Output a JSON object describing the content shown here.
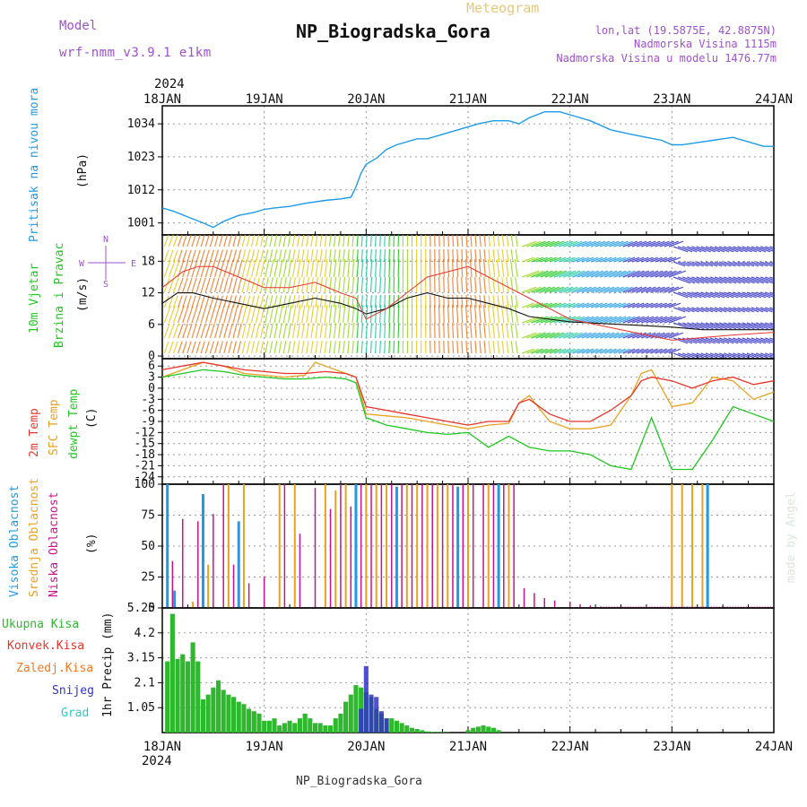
{
  "header": {
    "model_label": "Model",
    "model_value": "wrf-nmm_v3.9.1 e1km",
    "meteogram_label": "Meteogram",
    "station_title": "NP_Biogradska_Gora",
    "coords": "lon,lat (19.5875E, 42.8875N)",
    "altitude": "Nadmorska Visina 1115m",
    "model_altitude": "Nadmorska Visina u modelu 1476.77m",
    "year": "2024",
    "footer_station": "NP_Biogradska_Gora",
    "watermark": "made by Angel"
  },
  "colors": {
    "pressure": "#1e9be8",
    "temp2m": "#e8352b",
    "sfc_temp": "#e8a21e",
    "dewpt": "#1ec81e",
    "high_cloud": "#1e9be8",
    "mid_cloud": "#e8a21e",
    "low_cloud": "#c8148c",
    "precip_total": "#2db82d",
    "precip_conv": "#e8352b",
    "precip_frz": "#f07820",
    "precip_snow": "#3232c8",
    "precip_graupel": "#32c8c8",
    "header_purple": "#a050d0",
    "meteogram_gold": "#e8c878"
  },
  "x_axis": {
    "labels": [
      "18JAN",
      "19JAN",
      "20JAN",
      "21JAN",
      "22JAN",
      "23JAN",
      "24JAN"
    ]
  },
  "panels": {
    "pressure": {
      "ylabels": [
        "Pritisak na nivou mora",
        "(hPa)"
      ]
    },
    "wind": {
      "ylabels": [
        "10m Vjetar",
        "Brzina i Pravac",
        "(m/s)"
      ],
      "compass": {
        "n": "N",
        "s": "S",
        "e": "E",
        "w": "W"
      }
    },
    "temp": {
      "ylabels": [
        "2m Temp",
        "SFC Temp",
        "dewpt Temp",
        "(C)"
      ]
    },
    "cloud": {
      "ylabels": [
        "Visoka Oblacnost",
        "Srednja Oblacnost",
        "Niska Oblacnost",
        "(%)"
      ]
    },
    "precip": {
      "ylabels": [
        "1hr Precip (mm)"
      ],
      "legend": [
        "Ukupna Kisa",
        "Konvek.Kisa",
        "Zaledj.Kisa",
        "Snijeg",
        "Grad"
      ]
    }
  },
  "chart_data": [
    {
      "type": "line",
      "title": "",
      "ylabel": "Pritisak na nivou mora (hPa)",
      "x_unit": "days from 18JAN 2024 00UTC",
      "yticks": [
        1001,
        1012,
        1023,
        1034
      ],
      "ylim": [
        997,
        1040
      ],
      "series": [
        {
          "name": "",
          "x": [
            0,
            0.1,
            0.25,
            0.4,
            0.5,
            0.6,
            0.75,
            0.9,
            1.0,
            1.1,
            1.25,
            1.4,
            1.6,
            1.75,
            1.85,
            1.9,
            1.95,
            2.0,
            2.1,
            2.2,
            2.3,
            2.5,
            2.6,
            2.75,
            2.9,
            3.1,
            3.25,
            3.4,
            3.5,
            3.6,
            3.75,
            3.9,
            4.0,
            4.2,
            4.4,
            4.6,
            4.75,
            4.9,
            5.0,
            5.1,
            5.3,
            5.4,
            5.5,
            5.6,
            5.75,
            5.9,
            6.0
          ],
          "y": [
            1006,
            1005,
            1003,
            1001,
            999.5,
            1001.5,
            1003.5,
            1004.5,
            1005.5,
            1006,
            1006.5,
            1007.5,
            1008.5,
            1009,
            1009.5,
            1013,
            1017.5,
            1020.5,
            1022.5,
            1025.5,
            1027,
            1029,
            1029,
            1030.5,
            1032,
            1034,
            1035,
            1035,
            1034,
            1036,
            1038,
            1038,
            1037,
            1035,
            1032,
            1030.5,
            1029.5,
            1028.5,
            1027,
            1027,
            1028,
            1028.5,
            1029,
            1029.5,
            1028,
            1026.5,
            1026.5
          ]
        }
      ]
    },
    {
      "type": "line",
      "title": "",
      "ylabel": "10m Vjetar Brzina i Pravac (m/s)",
      "yticks": [
        0,
        6,
        12,
        18
      ],
      "ylim": [
        -0.5,
        23
      ],
      "series": [
        {
          "name": "",
          "x": [
            0,
            0.15,
            0.3,
            0.5,
            0.75,
            1.0,
            1.25,
            1.5,
            1.75,
            1.9,
            2.0,
            2.2,
            2.4,
            2.6,
            2.8,
            3.0,
            3.2,
            3.4,
            3.6,
            3.8,
            4.0,
            4.5,
            5.0,
            5.3,
            5.6,
            6.0
          ],
          "y": [
            10,
            12,
            12,
            11,
            10,
            9,
            10,
            11,
            10,
            9,
            8,
            9,
            11,
            12,
            11,
            11,
            10,
            9,
            7.5,
            7,
            6.5,
            6,
            5.5,
            5,
            5,
            5
          ]
        },
        {
          "name": "",
          "x": [
            0,
            0.2,
            0.35,
            0.5,
            0.75,
            1.0,
            1.25,
            1.5,
            1.75,
            1.9,
            2.0,
            2.2,
            2.4,
            2.6,
            2.8,
            3.0,
            3.2,
            3.4,
            3.6,
            3.8,
            4.0,
            4.5,
            5.0,
            5.3,
            5.6,
            6.0
          ],
          "y": [
            13,
            16,
            17,
            17,
            15,
            13,
            13,
            14,
            12,
            11,
            7,
            9,
            12,
            15,
            16,
            17,
            15,
            13,
            11,
            9,
            7,
            5,
            3,
            3.5,
            4,
            4.5
          ]
        }
      ]
    },
    {
      "type": "line",
      "title": "",
      "ylabel": "Temp (C)",
      "yticks": [
        -24,
        -21,
        -18,
        -15,
        -12,
        -9,
        -6,
        -3,
        0,
        3,
        6
      ],
      "ylim": [
        -26,
        8
      ],
      "series": [
        {
          "name": "2m Temp",
          "x": [
            0,
            0.2,
            0.4,
            0.6,
            0.8,
            1.0,
            1.2,
            1.4,
            1.6,
            1.8,
            1.9,
            2.0,
            2.2,
            2.4,
            2.6,
            2.8,
            3.0,
            3.2,
            3.4,
            3.5,
            3.6,
            3.8,
            4.0,
            4.2,
            4.4,
            4.6,
            4.7,
            4.8,
            5.0,
            5.2,
            5.4,
            5.6,
            5.8,
            6.0
          ],
          "y": [
            5,
            6,
            7,
            6,
            5,
            4.5,
            4,
            4,
            4.5,
            4,
            3,
            -5,
            -6,
            -7,
            -8,
            -9,
            -10,
            -9,
            -9,
            -4,
            -3,
            -7,
            -9,
            -9,
            -6,
            -2,
            2,
            3,
            2,
            0,
            2,
            3,
            1,
            2
          ]
        },
        {
          "name": "SFC Temp",
          "x": [
            0,
            0.2,
            0.4,
            0.6,
            0.8,
            1.0,
            1.2,
            1.4,
            1.5,
            1.6,
            1.8,
            1.9,
            2.0,
            2.2,
            2.4,
            2.6,
            2.8,
            3.0,
            3.2,
            3.4,
            3.5,
            3.6,
            3.8,
            4.0,
            4.2,
            4.4,
            4.6,
            4.7,
            4.8,
            5.0,
            5.2,
            5.4,
            5.6,
            5.8,
            6.0
          ],
          "y": [
            3,
            5,
            7,
            6,
            4,
            3.5,
            3,
            3.5,
            7,
            6,
            4,
            3,
            -7,
            -7.5,
            -8,
            -9,
            -10,
            -11,
            -10,
            -9.5,
            -4,
            -2,
            -9,
            -11,
            -11,
            -10,
            -2,
            4,
            5,
            -5,
            -4,
            3,
            2,
            -3,
            -1
          ]
        },
        {
          "name": "dewpt Temp",
          "x": [
            0,
            0.2,
            0.4,
            0.6,
            0.8,
            1.0,
            1.2,
            1.4,
            1.6,
            1.8,
            1.9,
            2.0,
            2.2,
            2.4,
            2.6,
            2.8,
            3.0,
            3.1,
            3.2,
            3.4,
            3.6,
            3.8,
            4.0,
            4.2,
            4.4,
            4.6,
            4.7,
            4.8,
            5.0,
            5.2,
            5.4,
            5.6,
            5.8,
            6.0
          ],
          "y": [
            3,
            4,
            5,
            4.5,
            3.5,
            3,
            2.5,
            2.5,
            3,
            2.5,
            1.5,
            -8,
            -10,
            -11,
            -12,
            -12.5,
            -12,
            -14,
            -16,
            -13,
            -16,
            -17,
            -17,
            -18,
            -21,
            -22,
            -15,
            -8,
            -22,
            -22,
            -14,
            -5,
            -7,
            -9
          ]
        }
      ]
    },
    {
      "type": "bar",
      "title": "",
      "ylabel": "Oblacnost (%)",
      "yticks": [
        0,
        25,
        50,
        75,
        100
      ],
      "ylim": [
        0,
        100
      ],
      "series": [
        {
          "name": "Visoka Oblacnost",
          "x": [
            0.05,
            0.12,
            0.4,
            0.75,
            1.9,
            2.3,
            2.9,
            3.3,
            5.35
          ],
          "y": [
            100,
            14,
            92,
            70,
            100,
            98,
            98,
            100,
            100
          ]
        },
        {
          "name": "Srednja Oblacnost",
          "x": [
            0.3,
            0.45,
            0.65,
            0.8,
            1.15,
            1.3,
            1.6,
            1.7,
            1.8,
            2.0,
            2.1,
            2.2,
            2.4,
            2.5,
            2.6,
            2.7,
            2.8,
            3.0,
            3.2,
            3.4,
            5.0,
            5.1,
            5.2,
            5.3
          ],
          "y": [
            5,
            35,
            100,
            100,
            100,
            100,
            100,
            95,
            100,
            100,
            100,
            100,
            100,
            100,
            100,
            100,
            100,
            100,
            100,
            100,
            100,
            100,
            100,
            100
          ]
        },
        {
          "name": "Niska Oblacnost",
          "x": [
            0.1,
            0.2,
            0.35,
            0.5,
            0.6,
            0.7,
            0.85,
            1.0,
            1.2,
            1.35,
            1.5,
            1.65,
            1.75,
            1.85,
            1.95,
            2.05,
            2.15,
            2.25,
            2.35,
            2.45,
            2.55,
            2.65,
            2.75,
            2.85,
            2.95,
            3.05,
            3.15,
            3.25,
            3.35,
            3.45,
            3.55,
            3.65,
            3.75,
            3.85,
            4.0,
            4.1,
            4.2,
            4.3
          ],
          "y": [
            38,
            72,
            70,
            76,
            100,
            35,
            20,
            25,
            100,
            60,
            97,
            80,
            100,
            82,
            100,
            100,
            100,
            100,
            100,
            100,
            100,
            100,
            100,
            100,
            100,
            100,
            100,
            100,
            100,
            100,
            16,
            12,
            8,
            6,
            5,
            3,
            2,
            1
          ]
        }
      ]
    },
    {
      "type": "bar",
      "title": "",
      "ylabel": "1hr Precip (mm)",
      "yticks": [
        1.05,
        2.1,
        3.15,
        4.2,
        5.25
      ],
      "ylim": [
        0,
        5.25
      ],
      "series": [
        {
          "name": "Ukupna Kisa",
          "x": [
            0.05,
            0.1,
            0.15,
            0.2,
            0.25,
            0.3,
            0.35,
            0.4,
            0.45,
            0.5,
            0.55,
            0.6,
            0.65,
            0.7,
            0.75,
            0.8,
            0.85,
            0.9,
            0.95,
            1.0,
            1.05,
            1.1,
            1.15,
            1.2,
            1.25,
            1.3,
            1.35,
            1.4,
            1.45,
            1.5,
            1.55,
            1.6,
            1.65,
            1.7,
            1.75,
            1.8,
            1.85,
            1.9,
            1.95,
            2.0,
            2.05,
            2.1,
            2.15,
            2.2,
            2.25,
            2.3,
            2.35,
            2.4,
            2.45,
            2.5,
            2.55,
            2.6,
            2.65,
            2.7,
            2.75,
            2.8,
            3.0,
            3.05,
            3.1,
            3.15,
            3.2,
            3.25,
            3.3
          ],
          "y": [
            3.0,
            5.0,
            3.1,
            3.3,
            3.0,
            3.8,
            3.0,
            1.4,
            1.6,
            1.9,
            2.2,
            1.8,
            1.6,
            1.5,
            1.3,
            1.2,
            1.0,
            0.9,
            0.8,
            0.5,
            0.5,
            0.6,
            0.3,
            0.4,
            0.5,
            0.4,
            0.6,
            0.8,
            0.6,
            0.4,
            0.4,
            0.3,
            0.3,
            0.6,
            0.8,
            1.3,
            1.6,
            2.0,
            1.9,
            1.7,
            1.5,
            1.0,
            0.8,
            0.6,
            0.6,
            0.5,
            0.4,
            0.3,
            0.2,
            0.15,
            0.1,
            0.05,
            0.03,
            0.02,
            0.02,
            0.01,
            0.1,
            0.2,
            0.25,
            0.3,
            0.25,
            0.2,
            0.1
          ]
        },
        {
          "name": "Snijeg",
          "x": [
            1.95,
            2.0,
            2.05,
            2.1,
            2.15,
            2.2
          ],
          "y": [
            1.0,
            2.8,
            1.6,
            1.5,
            0.9,
            0.6
          ]
        }
      ]
    }
  ]
}
